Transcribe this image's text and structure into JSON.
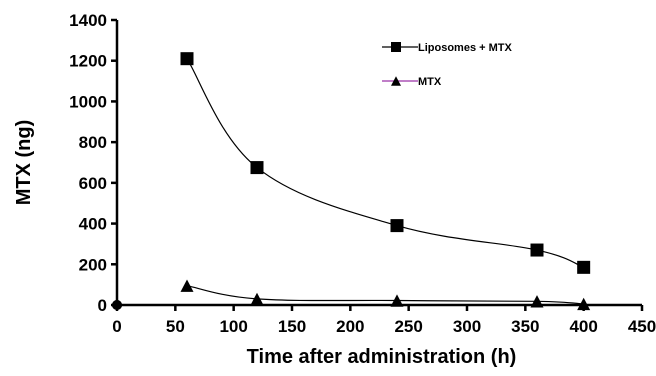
{
  "chart_data": {
    "type": "line",
    "title": "",
    "xlabel": "Time after administration (h)",
    "ylabel": "MTX (ng)",
    "xlim": [
      0,
      450
    ],
    "ylim": [
      0,
      1400
    ],
    "x_ticks": [
      0,
      50,
      100,
      150,
      200,
      250,
      300,
      350,
      400,
      450
    ],
    "y_ticks": [
      0,
      200,
      400,
      600,
      800,
      1000,
      1200,
      1400
    ],
    "grid": false,
    "legend_position": "top-right",
    "series": [
      {
        "name": "Liposomes + MTX",
        "marker": "square",
        "color": "#000000",
        "x": [
          0,
          60,
          120,
          240,
          360,
          400
        ],
        "y": [
          0,
          1210,
          675,
          390,
          270,
          185
        ]
      },
      {
        "name": "MTX",
        "marker": "triangle",
        "color": "#000000",
        "legend_line_color": "#9b30a8",
        "x": [
          0,
          60,
          120,
          240,
          360,
          400
        ],
        "y": [
          0,
          95,
          30,
          22,
          18,
          5
        ]
      }
    ]
  }
}
